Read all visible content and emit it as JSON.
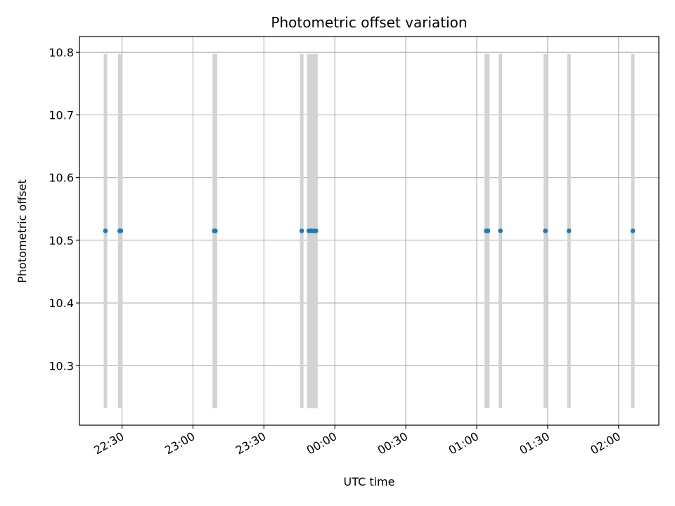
{
  "chart_data": {
    "type": "scatter",
    "title": "Photometric offset variation",
    "xlabel": "UTC time",
    "ylabel": "Photometric offset",
    "x_axis_type": "time",
    "xlim": [
      "22:12",
      "02:17"
    ],
    "ylim": [
      10.205,
      10.825
    ],
    "x_ticks": [
      "22:30",
      "23:00",
      "23:30",
      "00:00",
      "00:30",
      "01:00",
      "01:30",
      "02:00"
    ],
    "y_ticks": [
      10.3,
      10.4,
      10.5,
      10.6,
      10.7,
      10.8
    ],
    "y_tick_labels": [
      "10.3",
      "10.4",
      "10.5",
      "10.6",
      "10.7",
      "10.8"
    ],
    "grid": true,
    "point_color": "#1f77b4",
    "errorbar_color": "#d3d3d3",
    "points": [
      {
        "x": "22:23",
        "y": 10.515,
        "ylow": 10.232,
        "yhigh": 10.797
      },
      {
        "x": "22:29",
        "y": 10.515,
        "ylow": 10.232,
        "yhigh": 10.797
      },
      {
        "x": "22:29.5",
        "y": 10.515,
        "ylow": 10.232,
        "yhigh": 10.797
      },
      {
        "x": "23:09",
        "y": 10.515,
        "ylow": 10.232,
        "yhigh": 10.797
      },
      {
        "x": "23:09.5",
        "y": 10.515,
        "ylow": 10.232,
        "yhigh": 10.797
      },
      {
        "x": "23:46",
        "y": 10.515,
        "ylow": 10.232,
        "yhigh": 10.797
      },
      {
        "x": "23:49",
        "y": 10.515,
        "ylow": 10.232,
        "yhigh": 10.797
      },
      {
        "x": "23:50",
        "y": 10.515,
        "ylow": 10.232,
        "yhigh": 10.797
      },
      {
        "x": "23:51",
        "y": 10.515,
        "ylow": 10.232,
        "yhigh": 10.797
      },
      {
        "x": "23:52",
        "y": 10.515,
        "ylow": 10.232,
        "yhigh": 10.797
      },
      {
        "x": "01:04",
        "y": 10.515,
        "ylow": 10.232,
        "yhigh": 10.797
      },
      {
        "x": "01:04.7",
        "y": 10.515,
        "ylow": 10.232,
        "yhigh": 10.797
      },
      {
        "x": "01:10",
        "y": 10.515,
        "ylow": 10.232,
        "yhigh": 10.797
      },
      {
        "x": "01:29",
        "y": 10.515,
        "ylow": 10.232,
        "yhigh": 10.797
      },
      {
        "x": "01:39",
        "y": 10.515,
        "ylow": 10.232,
        "yhigh": 10.797
      },
      {
        "x": "02:06",
        "y": 10.515,
        "ylow": 10.232,
        "yhigh": 10.797
      }
    ]
  }
}
